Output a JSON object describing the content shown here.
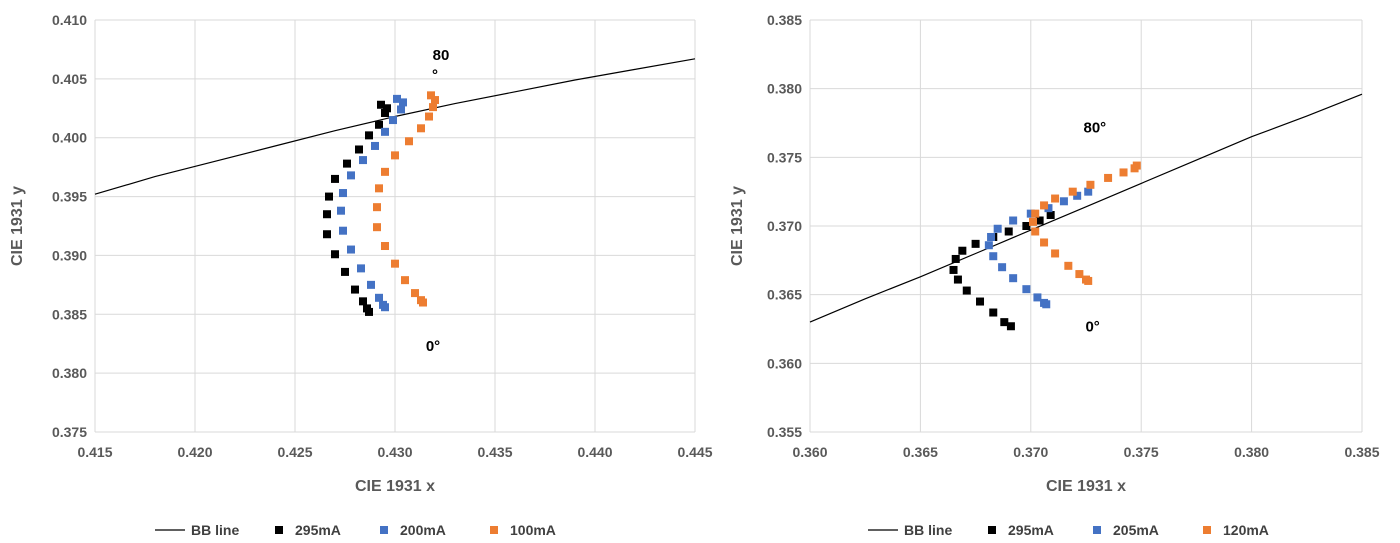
{
  "chart_data": [
    {
      "type": "scatter",
      "title": "",
      "xlabel": "CIE 1931 x",
      "ylabel": "CIE 1931 y",
      "xlim": [
        0.415,
        0.445
      ],
      "ylim": [
        0.375,
        0.41
      ],
      "x_ticks": [
        "0.415",
        "0.420",
        "0.425",
        "0.430",
        "0.435",
        "0.440",
        "0.445"
      ],
      "y_ticks": [
        "0.375",
        "0.380",
        "0.385",
        "0.390",
        "0.395",
        "0.400",
        "0.405",
        "0.410"
      ],
      "grid": true,
      "legend_position": "bottom",
      "annotations": [
        {
          "text": "80",
          "x": 0.4323,
          "y": 0.4066
        },
        {
          "text": "°",
          "x": 0.432,
          "y": 0.4049
        },
        {
          "text": "0°",
          "x": 0.4319,
          "y": 0.3819
        }
      ],
      "series": [
        {
          "name": "BB line",
          "kind": "line",
          "color": "#000000",
          "x": [
            0.415,
            0.418,
            0.421,
            0.424,
            0.427,
            0.43,
            0.433,
            0.436,
            0.439,
            0.442,
            0.445
          ],
          "y": [
            0.3952,
            0.3967,
            0.398,
            0.3993,
            0.4006,
            0.4018,
            0.4029,
            0.4039,
            0.4049,
            0.4058,
            0.4067
          ]
        },
        {
          "name": "295mA",
          "kind": "marker",
          "color": "#000000",
          "x": [
            0.4293,
            0.4296,
            0.4295,
            0.4292,
            0.4287,
            0.4282,
            0.4276,
            0.427,
            0.4267,
            0.4266,
            0.4266,
            0.427,
            0.4275,
            0.428,
            0.4284,
            0.4286,
            0.4287
          ],
          "y": [
            0.4028,
            0.4025,
            0.4021,
            0.4011,
            0.4002,
            0.399,
            0.3978,
            0.3965,
            0.395,
            0.3935,
            0.3918,
            0.3901,
            0.3886,
            0.3871,
            0.3861,
            0.3855,
            0.3852
          ]
        },
        {
          "name": "200mA",
          "kind": "marker",
          "color": "#4472C4",
          "x": [
            0.4301,
            0.4304,
            0.4303,
            0.4299,
            0.4295,
            0.429,
            0.4284,
            0.4278,
            0.4274,
            0.4273,
            0.4274,
            0.4278,
            0.4283,
            0.4288,
            0.4292,
            0.4294,
            0.4295
          ],
          "y": [
            0.4033,
            0.403,
            0.4024,
            0.4015,
            0.4005,
            0.3993,
            0.3981,
            0.3968,
            0.3953,
            0.3938,
            0.3921,
            0.3905,
            0.3889,
            0.3875,
            0.3864,
            0.3858,
            0.3856
          ]
        },
        {
          "name": "100mA",
          "kind": "marker",
          "color": "#ED7D31",
          "x": [
            0.4318,
            0.432,
            0.4319,
            0.4317,
            0.4313,
            0.4307,
            0.43,
            0.4295,
            0.4292,
            0.4291,
            0.4291,
            0.4295,
            0.43,
            0.4305,
            0.431,
            0.4313,
            0.4314
          ],
          "y": [
            0.4036,
            0.4032,
            0.4026,
            0.4018,
            0.4008,
            0.3997,
            0.3985,
            0.3971,
            0.3957,
            0.3941,
            0.3924,
            0.3908,
            0.3893,
            0.3879,
            0.3868,
            0.3862,
            0.386
          ]
        }
      ]
    },
    {
      "type": "scatter",
      "title": "",
      "xlabel": "CIE 1931 x",
      "ylabel": "CIE 1931 y",
      "xlim": [
        0.36,
        0.385
      ],
      "ylim": [
        0.355,
        0.385
      ],
      "x_ticks": [
        "0.360",
        "0.365",
        "0.370",
        "0.375",
        "0.380",
        "0.385"
      ],
      "y_ticks": [
        "0.355",
        "0.360",
        "0.365",
        "0.370",
        "0.375",
        "0.380",
        "0.385"
      ],
      "grid": true,
      "legend_position": "bottom",
      "annotations": [
        {
          "text": "80°",
          "x": 0.3729,
          "y": 0.3768
        },
        {
          "text": "0°",
          "x": 0.3728,
          "y": 0.3623
        }
      ],
      "series": [
        {
          "name": "BB line",
          "kind": "line",
          "color": "#000000",
          "x": [
            0.36,
            0.3625,
            0.365,
            0.3675,
            0.37,
            0.3725,
            0.375,
            0.3775,
            0.38,
            0.3825,
            0.385
          ],
          "y": [
            0.363,
            0.3647,
            0.3663,
            0.368,
            0.3697,
            0.3714,
            0.3731,
            0.3748,
            0.3765,
            0.378,
            0.3796
          ]
        },
        {
          "name": "295mA",
          "kind": "marker",
          "color": "#000000",
          "x": [
            0.3709,
            0.3704,
            0.3698,
            0.369,
            0.3683,
            0.3675,
            0.3669,
            0.3666,
            0.3665,
            0.3667,
            0.3671,
            0.3677,
            0.3683,
            0.3688,
            0.3691
          ],
          "y": [
            0.3708,
            0.3704,
            0.37,
            0.3696,
            0.3692,
            0.3687,
            0.3682,
            0.3676,
            0.3668,
            0.3661,
            0.3653,
            0.3645,
            0.3637,
            0.363,
            0.3627
          ]
        },
        {
          "name": "205mA",
          "kind": "marker",
          "color": "#4472C4",
          "x": [
            0.3726,
            0.3721,
            0.3715,
            0.3708,
            0.37,
            0.3692,
            0.3685,
            0.3682,
            0.3681,
            0.3683,
            0.3687,
            0.3692,
            0.3698,
            0.3703,
            0.3706,
            0.3707
          ],
          "y": [
            0.3725,
            0.3722,
            0.3718,
            0.3713,
            0.3709,
            0.3704,
            0.3698,
            0.3692,
            0.3686,
            0.3678,
            0.367,
            0.3662,
            0.3654,
            0.3648,
            0.3644,
            0.3643
          ]
        },
        {
          "name": "120mA",
          "kind": "marker",
          "color": "#ED7D31",
          "x": [
            0.3748,
            0.3747,
            0.3742,
            0.3735,
            0.3727,
            0.3719,
            0.3711,
            0.3706,
            0.3702,
            0.3701,
            0.3702,
            0.3706,
            0.3711,
            0.3717,
            0.3722,
            0.3725,
            0.3726
          ],
          "y": [
            0.3744,
            0.3742,
            0.3739,
            0.3735,
            0.373,
            0.3725,
            0.372,
            0.3715,
            0.3709,
            0.3703,
            0.3696,
            0.3688,
            0.368,
            0.3671,
            0.3665,
            0.3661,
            0.366
          ]
        }
      ]
    }
  ]
}
